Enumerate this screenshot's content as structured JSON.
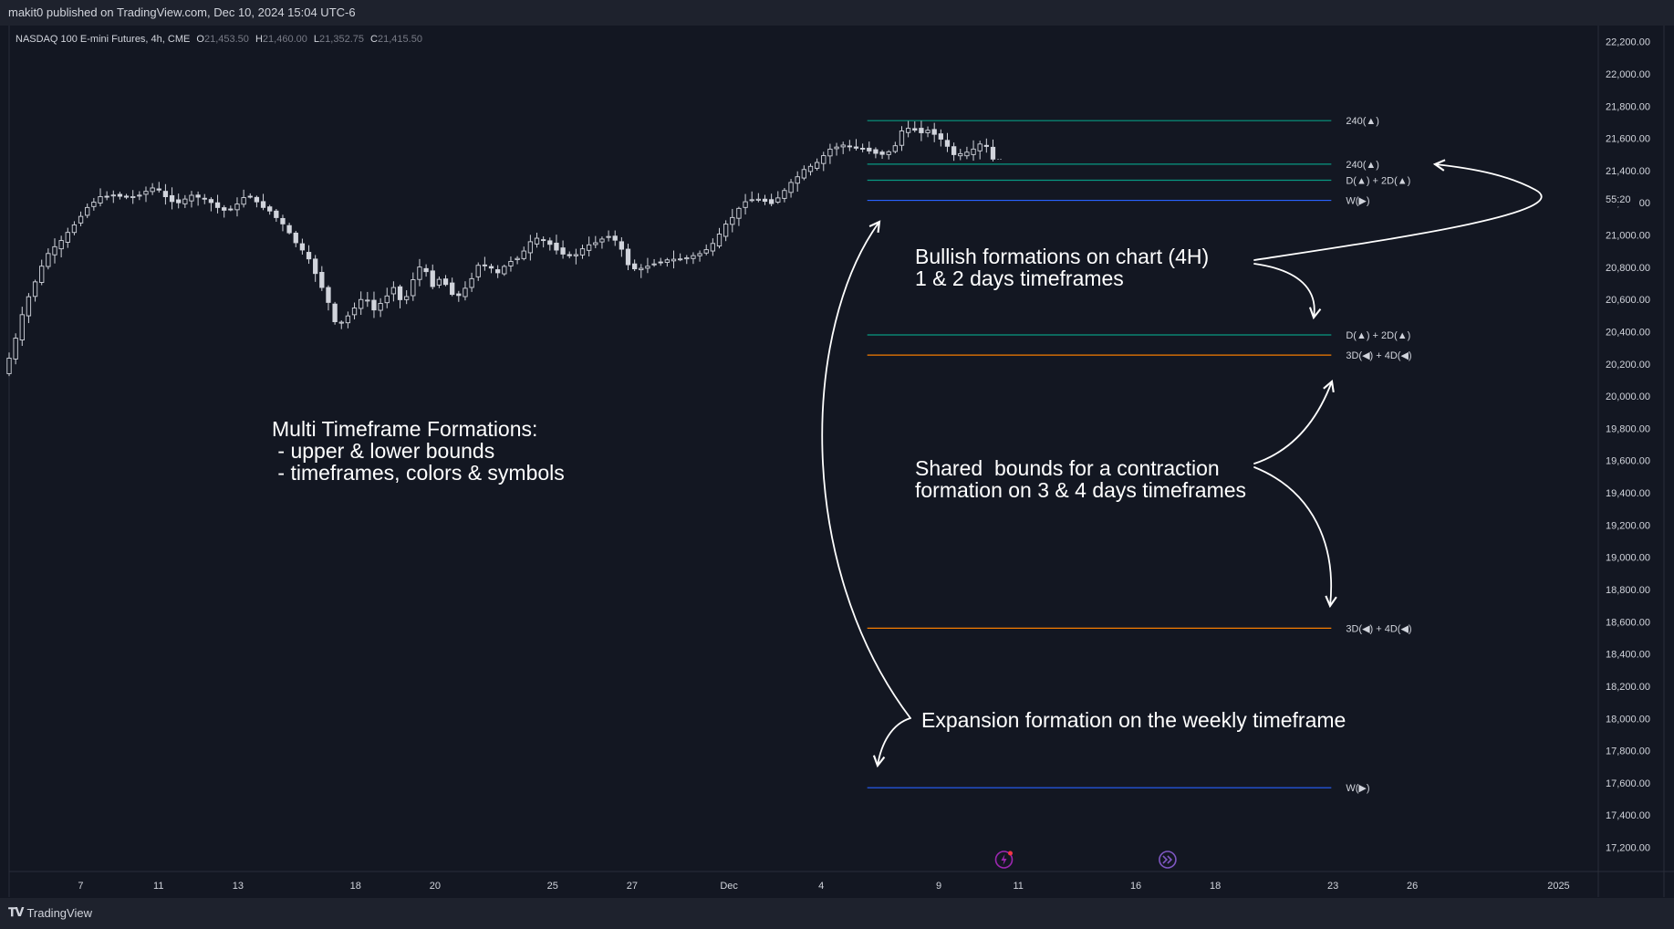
{
  "header": {
    "published": "makit0 published on TradingView.com, Dec 10, 2024 15:04 UTC-6"
  },
  "footer": {
    "brand": "TradingView",
    "logo_icon": "tradingview-logo-icon"
  },
  "colors": {
    "background": "#131722",
    "up": "#d1d4dc",
    "down": "#d1d4dc",
    "teal": "#089981",
    "orange": "#f57c00",
    "blue": "#2962ff",
    "annotation": "#ffffff"
  },
  "chart_data": {
    "type": "candlestick",
    "instrument": "NASDAQ 100 E-mini Futures, 4h, CME",
    "ohlc": {
      "o_label": "O",
      "o": "21,453.50",
      "h_label": "H",
      "h": "21,460.00",
      "l_label": "L",
      "l": "21,352.75",
      "c_label": "C",
      "c": "21,415.50"
    },
    "countdown": "55:20",
    "countdown_price": 21200,
    "ylim": [
      17050,
      22300
    ],
    "xlim": [
      0,
      1000
    ],
    "grid": false,
    "y_ticks": [
      22200,
      22000,
      21800,
      21600,
      21400,
      21200,
      21000,
      20800,
      20600,
      20400,
      20200,
      20000,
      19800,
      19600,
      19400,
      19200,
      19000,
      18800,
      18600,
      18400,
      18200,
      18000,
      17800,
      17600,
      17400,
      17200
    ],
    "y_tick_labels": [
      "22,200.00",
      "22,000.00",
      "21,800.00",
      "21,600.00",
      "21,400.00",
      "21,200.00",
      "21,000.00",
      "20,800.00",
      "20,600.00",
      "20,400.00",
      "20,200.00",
      "20,000.00",
      "19,800.00",
      "19,600.00",
      "19,400.00",
      "19,200.00",
      "19,000.00",
      "18,800.00",
      "18,600.00",
      "18,400.00",
      "18,200.00",
      "18,000.00",
      "17,800.00",
      "17,600.00",
      "17,400.00",
      "17,200.00"
    ],
    "x_ticks": [
      {
        "pos": 45,
        "label": "7"
      },
      {
        "pos": 94,
        "label": "11"
      },
      {
        "pos": 144,
        "label": "13"
      },
      {
        "pos": 218,
        "label": "18"
      },
      {
        "pos": 268,
        "label": "20"
      },
      {
        "pos": 342,
        "label": "25"
      },
      {
        "pos": 392,
        "label": "27"
      },
      {
        "pos": 453,
        "label": "Dec"
      },
      {
        "pos": 511,
        "label": "4"
      },
      {
        "pos": 585,
        "label": "9"
      },
      {
        "pos": 635,
        "label": "11"
      },
      {
        "pos": 709,
        "label": "16"
      },
      {
        "pos": 759,
        "label": "18"
      },
      {
        "pos": 833,
        "label": "23"
      },
      {
        "pos": 883,
        "label": "26"
      },
      {
        "pos": 975,
        "label": "2025"
      }
    ],
    "path_points": [
      [
        0,
        20140
      ],
      [
        6,
        20280
      ],
      [
        14,
        20560
      ],
      [
        20,
        20700
      ],
      [
        28,
        20880
      ],
      [
        36,
        20950
      ],
      [
        44,
        21050
      ],
      [
        52,
        21160
      ],
      [
        60,
        21230
      ],
      [
        70,
        21250
      ],
      [
        80,
        21230
      ],
      [
        88,
        21260
      ],
      [
        96,
        21300
      ],
      [
        104,
        21220
      ],
      [
        112,
        21200
      ],
      [
        120,
        21250
      ],
      [
        130,
        21210
      ],
      [
        138,
        21150
      ],
      [
        146,
        21170
      ],
      [
        154,
        21260
      ],
      [
        160,
        21200
      ],
      [
        168,
        21150
      ],
      [
        176,
        21070
      ],
      [
        184,
        20960
      ],
      [
        192,
        20860
      ],
      [
        198,
        20740
      ],
      [
        204,
        20610
      ],
      [
        210,
        20430
      ],
      [
        216,
        20480
      ],
      [
        222,
        20560
      ],
      [
        228,
        20620
      ],
      [
        234,
        20530
      ],
      [
        240,
        20600
      ],
      [
        246,
        20680
      ],
      [
        252,
        20560
      ],
      [
        258,
        20720
      ],
      [
        264,
        20830
      ],
      [
        270,
        20680
      ],
      [
        276,
        20740
      ],
      [
        282,
        20640
      ],
      [
        288,
        20620
      ],
      [
        294,
        20710
      ],
      [
        300,
        20830
      ],
      [
        306,
        20800
      ],
      [
        312,
        20760
      ],
      [
        318,
        20830
      ],
      [
        326,
        20870
      ],
      [
        334,
        20980
      ],
      [
        342,
        20960
      ],
      [
        350,
        20900
      ],
      [
        358,
        20860
      ],
      [
        366,
        20920
      ],
      [
        374,
        20960
      ],
      [
        382,
        21000
      ],
      [
        388,
        20940
      ],
      [
        394,
        20810
      ],
      [
        400,
        20780
      ],
      [
        408,
        20820
      ],
      [
        416,
        20840
      ],
      [
        424,
        20850
      ],
      [
        432,
        20860
      ],
      [
        440,
        20890
      ],
      [
        448,
        20950
      ],
      [
        454,
        21050
      ],
      [
        460,
        21120
      ],
      [
        468,
        21220
      ],
      [
        476,
        21220
      ],
      [
        484,
        21200
      ],
      [
        490,
        21250
      ],
      [
        496,
        21320
      ],
      [
        504,
        21400
      ],
      [
        512,
        21440
      ],
      [
        520,
        21530
      ],
      [
        528,
        21560
      ],
      [
        536,
        21540
      ],
      [
        544,
        21530
      ],
      [
        552,
        21500
      ],
      [
        560,
        21520
      ],
      [
        566,
        21650
      ],
      [
        572,
        21660
      ],
      [
        578,
        21640
      ],
      [
        584,
        21650
      ],
      [
        592,
        21580
      ],
      [
        598,
        21500
      ],
      [
        604,
        21500
      ],
      [
        610,
        21520
      ],
      [
        616,
        21570
      ],
      [
        620,
        21540
      ],
      [
        622,
        21470
      ]
    ],
    "hlines": [
      {
        "price": 21710,
        "color": "teal",
        "label": "240(▲)"
      },
      {
        "price": 21440,
        "color": "teal",
        "label": "240(▲)"
      },
      {
        "price": 21340,
        "color": "teal",
        "label": "D(▲) + 2D(▲)"
      },
      {
        "price": 21215,
        "color": "blue",
        "label": "W(▶)"
      },
      {
        "price": 20380,
        "color": "teal",
        "label": "D(▲) + 2D(▲)"
      },
      {
        "price": 20255,
        "color": "orange",
        "label": "3D(◀) + 4D(◀)"
      },
      {
        "price": 18560,
        "color": "orange",
        "label": "3D(◀) + 4D(◀)"
      },
      {
        "price": 17570,
        "color": "blue",
        "label": "W(▶)"
      }
    ],
    "hline_x": [
      540,
      832
    ],
    "events": [
      {
        "pos": 626,
        "icon": "dividends-lightning-icon",
        "color": "#9c27b0"
      },
      {
        "pos": 729,
        "icon": "fast-forward-event-icon",
        "color": "#7e57c2"
      }
    ],
    "annotations": {
      "multi": [
        "Multi Timeframe Formations:",
        " - upper & lower bounds",
        " - timeframes, colors & symbols"
      ],
      "bullish": [
        "Bullish formations on chart (4H)",
        "1 & 2 days timeframes"
      ],
      "shared": [
        "Shared  bounds for a contraction",
        "formation on 3 & 4 days timeframes"
      ],
      "expansion": [
        "Expansion formation on the weekly timeframe"
      ]
    }
  }
}
